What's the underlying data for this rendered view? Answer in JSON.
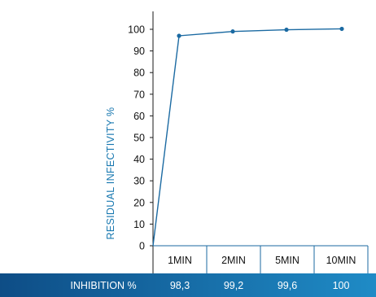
{
  "chart_data": {
    "type": "line",
    "ylabel": "RESIDUAL INFECTIVITY %",
    "ylim": [
      0,
      110
    ],
    "yticks": [
      0,
      10,
      20,
      30,
      40,
      50,
      60,
      70,
      80,
      90,
      100
    ],
    "grid": false,
    "categories": [
      "1MIN",
      "2MIN",
      "5MIN",
      "10MIN"
    ],
    "series": [
      {
        "values": [
          97,
          99,
          99.8,
          100.2
        ]
      }
    ],
    "inhibition_label": "INHIBITION %",
    "inhibition_values": [
      "98,3",
      "99,2",
      "99,6",
      "100"
    ],
    "colors": {
      "accent": "#1878b0",
      "line": "#1b6aa2",
      "footer_left": "#0e4d86",
      "footer_right": "#1f8bc6"
    }
  }
}
